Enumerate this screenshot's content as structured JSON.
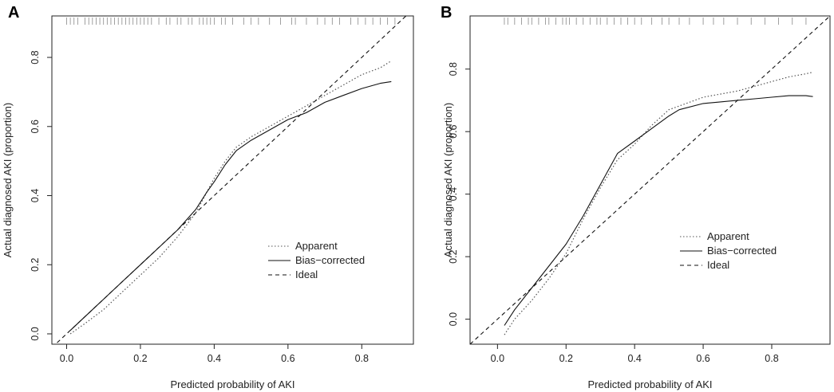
{
  "chart_data": [
    {
      "panel": "A",
      "type": "line",
      "xlabel": "Predicted probability of AKI",
      "ylabel": "Actual diagnosed AKI (proportion)",
      "xlim": [
        -0.04,
        0.94
      ],
      "ylim": [
        -0.03,
        0.92
      ],
      "xticks": [
        0.0,
        0.2,
        0.4,
        0.6,
        0.8
      ],
      "yticks": [
        0.0,
        0.2,
        0.4,
        0.6,
        0.8
      ],
      "xticklabels": [
        "0.0",
        "0.2",
        "0.4",
        "0.6",
        "0.8"
      ],
      "yticklabels": [
        "0.0",
        "0.2",
        "0.4",
        "0.6",
        "0.8"
      ],
      "legend": {
        "position": "right",
        "entries": [
          "Apparent",
          "Bias−corrected",
          "Ideal"
        ]
      },
      "rug": [
        0.0,
        0.01,
        0.02,
        0.03,
        0.05,
        0.06,
        0.07,
        0.08,
        0.09,
        0.1,
        0.11,
        0.12,
        0.13,
        0.14,
        0.15,
        0.16,
        0.17,
        0.18,
        0.19,
        0.2,
        0.21,
        0.22,
        0.23,
        0.25,
        0.27,
        0.28,
        0.3,
        0.31,
        0.33,
        0.34,
        0.36,
        0.37,
        0.38,
        0.39,
        0.4,
        0.42,
        0.43,
        0.45,
        0.48,
        0.5,
        0.52,
        0.55,
        0.58,
        0.61,
        0.62,
        0.65,
        0.68,
        0.7,
        0.72,
        0.74,
        0.77,
        0.79,
        0.81,
        0.83,
        0.85,
        0.87,
        0.89
      ],
      "series": [
        {
          "name": "Apparent",
          "style": "dotted",
          "x": [
            0.01,
            0.05,
            0.1,
            0.15,
            0.2,
            0.25,
            0.3,
            0.35,
            0.38,
            0.4,
            0.43,
            0.46,
            0.5,
            0.55,
            0.6,
            0.65,
            0.7,
            0.75,
            0.8,
            0.85,
            0.88
          ],
          "y": [
            0.0,
            0.03,
            0.07,
            0.12,
            0.17,
            0.22,
            0.28,
            0.35,
            0.41,
            0.45,
            0.5,
            0.54,
            0.57,
            0.6,
            0.63,
            0.66,
            0.69,
            0.72,
            0.75,
            0.77,
            0.79
          ]
        },
        {
          "name": "Bias−corrected",
          "style": "solid",
          "x": [
            0.01,
            0.05,
            0.1,
            0.15,
            0.2,
            0.25,
            0.3,
            0.35,
            0.38,
            0.4,
            0.43,
            0.46,
            0.5,
            0.55,
            0.6,
            0.65,
            0.7,
            0.75,
            0.8,
            0.85,
            0.88
          ],
          "y": [
            0.01,
            0.05,
            0.1,
            0.15,
            0.2,
            0.25,
            0.3,
            0.36,
            0.41,
            0.44,
            0.49,
            0.53,
            0.56,
            0.59,
            0.62,
            0.64,
            0.67,
            0.69,
            0.71,
            0.725,
            0.73
          ]
        },
        {
          "name": "Ideal",
          "style": "dashed",
          "x": [
            -0.04,
            0.94
          ],
          "y": [
            -0.04,
            0.94
          ]
        }
      ]
    },
    {
      "panel": "B",
      "type": "line",
      "xlabel": "Predicted probability of AKI",
      "ylabel": "Actual diagnosed AKI (proportion)",
      "xlim": [
        -0.08,
        0.97
      ],
      "ylim": [
        -0.08,
        0.97
      ],
      "xticks": [
        0.0,
        0.2,
        0.4,
        0.6,
        0.8
      ],
      "yticks": [
        0.0,
        0.2,
        0.4,
        0.6,
        0.8
      ],
      "xticklabels": [
        "0.0",
        "0.2",
        "0.4",
        "0.6",
        "0.8"
      ],
      "yticklabels": [
        "0.0",
        "0.2",
        "0.4",
        "0.6",
        "0.8"
      ],
      "legend": {
        "position": "right",
        "entries": [
          "Apparent",
          "Bias−corrected",
          "Ideal"
        ]
      },
      "rug": [
        0.02,
        0.03,
        0.05,
        0.07,
        0.09,
        0.1,
        0.12,
        0.14,
        0.15,
        0.17,
        0.19,
        0.2,
        0.21,
        0.23,
        0.25,
        0.27,
        0.29,
        0.3,
        0.32,
        0.34,
        0.36,
        0.38,
        0.4,
        0.42,
        0.45,
        0.48,
        0.5,
        0.53,
        0.56,
        0.6,
        0.63,
        0.66,
        0.7,
        0.74,
        0.78,
        0.82,
        0.86,
        0.9
      ],
      "series": [
        {
          "name": "Apparent",
          "style": "dotted",
          "x": [
            0.02,
            0.05,
            0.1,
            0.15,
            0.2,
            0.25,
            0.3,
            0.35,
            0.4,
            0.45,
            0.5,
            0.55,
            0.6,
            0.65,
            0.7,
            0.75,
            0.8,
            0.85,
            0.9,
            0.92
          ],
          "y": [
            -0.05,
            0.0,
            0.06,
            0.13,
            0.21,
            0.32,
            0.42,
            0.51,
            0.56,
            0.62,
            0.67,
            0.69,
            0.71,
            0.72,
            0.73,
            0.745,
            0.76,
            0.775,
            0.785,
            0.79
          ]
        },
        {
          "name": "Bias−corrected",
          "style": "solid",
          "x": [
            0.02,
            0.05,
            0.1,
            0.15,
            0.2,
            0.25,
            0.3,
            0.35,
            0.4,
            0.45,
            0.5,
            0.53,
            0.6,
            0.65,
            0.7,
            0.75,
            0.8,
            0.85,
            0.9,
            0.92
          ],
          "y": [
            -0.02,
            0.03,
            0.1,
            0.17,
            0.24,
            0.33,
            0.43,
            0.53,
            0.57,
            0.61,
            0.65,
            0.67,
            0.69,
            0.695,
            0.7,
            0.705,
            0.71,
            0.715,
            0.715,
            0.712
          ]
        },
        {
          "name": "Ideal",
          "style": "dashed",
          "x": [
            -0.08,
            0.97
          ],
          "y": [
            -0.08,
            0.97
          ]
        }
      ]
    }
  ]
}
